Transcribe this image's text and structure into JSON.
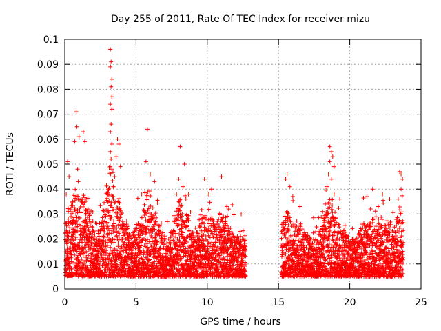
{
  "chart_data": {
    "type": "scatter",
    "title": "Day 255 of 2011, Rate Of TEC Index for receiver mizu",
    "xlabel": "GPS time / hours",
    "ylabel": "ROTI / TECUs",
    "xlim": [
      0,
      25
    ],
    "ylim": [
      0,
      0.1
    ],
    "xticks": [
      0,
      5,
      10,
      15,
      20,
      25
    ],
    "xtick_labels": [
      "0",
      "5",
      "10",
      "15",
      "20",
      "25"
    ],
    "yticks": [
      0,
      0.01,
      0.02,
      0.03,
      0.04,
      0.05,
      0.06,
      0.07,
      0.08,
      0.09,
      0.1
    ],
    "ytick_labels": [
      "0",
      "0.01",
      "0.02",
      "0.03",
      "0.04",
      "0.05",
      "0.06",
      "0.07",
      "0.08",
      "0.09",
      "0.1"
    ],
    "grid": true,
    "marker": "+",
    "color": "#ff0000",
    "series": [
      {
        "name": "ROTI",
        "data_gap_hours": [
          12.7,
          15.2
        ],
        "baseline_range": [
          0.005,
          0.02
        ],
        "points": [
          [
            0.2,
            0.051
          ],
          [
            0.3,
            0.045
          ],
          [
            0.1,
            0.038
          ],
          [
            0.4,
            0.032
          ],
          [
            0.25,
            0.028
          ],
          [
            0.8,
            0.071
          ],
          [
            0.85,
            0.065
          ],
          [
            0.7,
            0.059
          ],
          [
            1.0,
            0.061
          ],
          [
            1.3,
            0.063
          ],
          [
            1.4,
            0.059
          ],
          [
            0.9,
            0.048
          ],
          [
            0.95,
            0.043
          ],
          [
            1.5,
            0.036
          ],
          [
            3.2,
            0.096
          ],
          [
            3.25,
            0.091
          ],
          [
            3.2,
            0.089
          ],
          [
            3.3,
            0.084
          ],
          [
            3.25,
            0.081
          ],
          [
            3.3,
            0.077
          ],
          [
            3.2,
            0.074
          ],
          [
            3.3,
            0.072
          ],
          [
            3.25,
            0.066
          ],
          [
            3.2,
            0.063
          ],
          [
            3.3,
            0.058
          ],
          [
            3.2,
            0.055
          ],
          [
            3.25,
            0.052
          ],
          [
            3.3,
            0.048
          ],
          [
            3.7,
            0.06
          ],
          [
            3.8,
            0.058
          ],
          [
            3.6,
            0.053
          ],
          [
            3.9,
            0.049
          ],
          [
            3.5,
            0.045
          ],
          [
            3.4,
            0.041
          ],
          [
            5.8,
            0.064
          ],
          [
            5.7,
            0.051
          ],
          [
            6.0,
            0.046
          ],
          [
            6.3,
            0.043
          ],
          [
            5.4,
            0.038
          ],
          [
            8.1,
            0.057
          ],
          [
            8.4,
            0.05
          ],
          [
            8.0,
            0.044
          ],
          [
            8.3,
            0.041
          ],
          [
            8.5,
            0.036
          ],
          [
            9.8,
            0.044
          ],
          [
            10.3,
            0.04
          ],
          [
            11.0,
            0.045
          ],
          [
            10.1,
            0.038
          ],
          [
            11.5,
            0.032
          ],
          [
            15.6,
            0.046
          ],
          [
            15.5,
            0.044
          ],
          [
            15.8,
            0.041
          ],
          [
            16.0,
            0.037
          ],
          [
            16.5,
            0.033
          ],
          [
            18.6,
            0.057
          ],
          [
            18.7,
            0.055
          ],
          [
            18.8,
            0.053
          ],
          [
            18.6,
            0.051
          ],
          [
            18.9,
            0.049
          ],
          [
            18.5,
            0.046
          ],
          [
            18.7,
            0.044
          ],
          [
            18.4,
            0.041
          ],
          [
            18.9,
            0.038
          ],
          [
            19.3,
            0.036
          ],
          [
            21.6,
            0.04
          ],
          [
            21.2,
            0.037
          ],
          [
            22.3,
            0.038
          ],
          [
            22.8,
            0.036
          ],
          [
            22.0,
            0.033
          ],
          [
            23.5,
            0.047
          ],
          [
            23.6,
            0.046
          ],
          [
            23.7,
            0.044
          ],
          [
            23.6,
            0.04
          ],
          [
            23.4,
            0.036
          ]
        ]
      }
    ]
  }
}
